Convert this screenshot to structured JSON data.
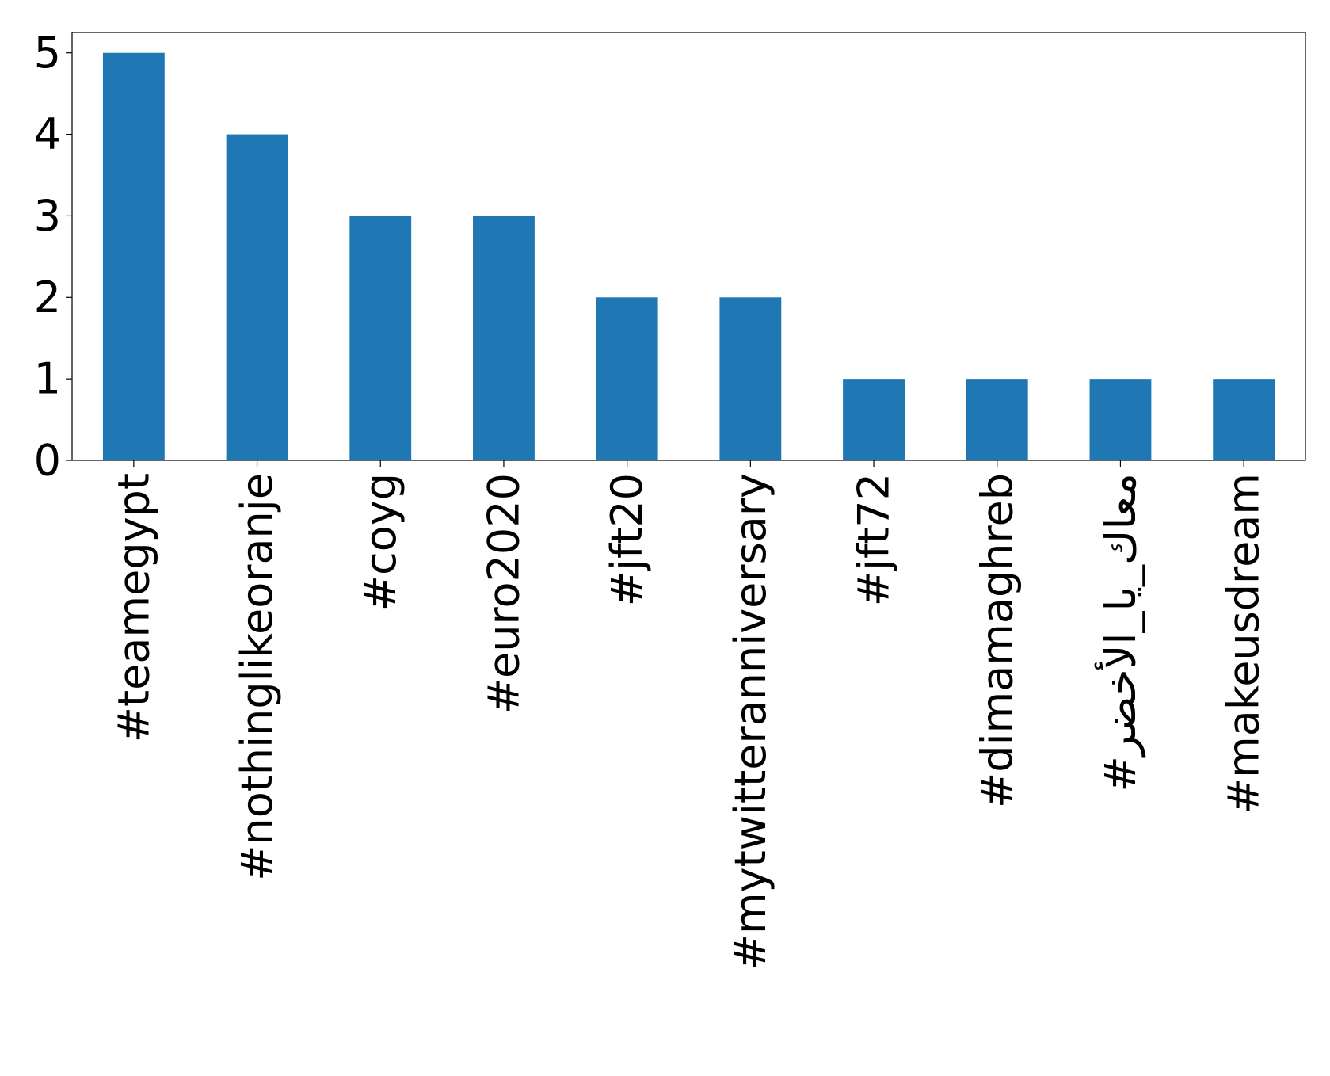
{
  "chart_data": {
    "type": "bar",
    "categories": [
      "#teamegypt",
      "#nothinglikeoranje",
      "#coyg",
      "#euro2020",
      "#jft20",
      "#mytwitteranniversary",
      "#jft72",
      "#dimamaghreb",
      "#معاك_يا_الأخضر",
      "#makeusdream"
    ],
    "values": [
      5,
      4,
      3,
      3,
      2,
      2,
      1,
      1,
      1,
      1
    ],
    "color": "#1f77b4",
    "ylim": [
      0,
      5.25
    ],
    "yticks": [
      0,
      1,
      2,
      3,
      4,
      5
    ],
    "grid": false
  }
}
